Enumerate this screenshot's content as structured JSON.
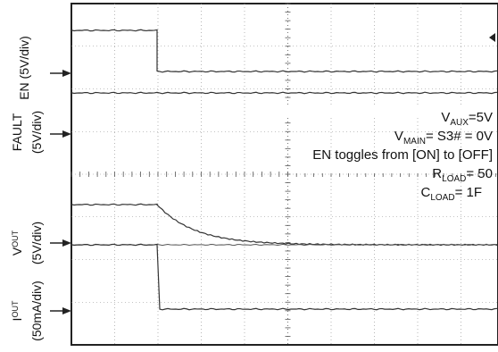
{
  "chart_data": {
    "type": "line",
    "grid": true,
    "channels": [
      {
        "name": "EN",
        "scale": "(5V/div)"
      },
      {
        "name": "FAULT",
        "scale": "(5V/div)"
      },
      {
        "name": "V",
        "sub": "OUT",
        "scale": "(5V/div)"
      },
      {
        "name": "I",
        "sub": "OUT",
        "scale": "(50mA/div)"
      }
    ],
    "annotations": [
      {
        "main": "V",
        "sub": "AUX",
        "tail": "=5V"
      },
      {
        "main": "V",
        "sub": "MAIN",
        "tail": "= S3# = 0V"
      },
      {
        "main": "EN toggles from [ON] to [OFF]",
        "sub": "",
        "tail": ""
      },
      {
        "main": "R",
        "sub": "LOAD",
        "tail": "= 50"
      },
      {
        "main": "C",
        "sub": "LOAD",
        "tail": "= 1F"
      }
    ]
  }
}
